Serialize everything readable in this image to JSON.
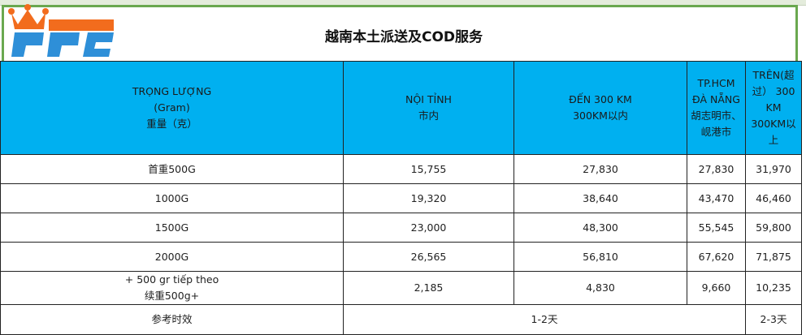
{
  "title": "越南本土派送及COD服务",
  "logo": {
    "text": "PFC",
    "crown_color": "#f26c1d",
    "letters_color": "#2e8fd8",
    "orange_bar": "#f26c1d"
  },
  "colors": {
    "header_bg": "#00b0f0",
    "title_border": "#6aa84f"
  },
  "header": {
    "weight": [
      "TRỌNG LƯỢNG",
      "(Gram)",
      "重量（克）"
    ],
    "local": [
      "NỘI TỈNH",
      "市内"
    ],
    "to300": [
      "ĐẾN 300 KM",
      "300KM以内"
    ],
    "hcm": [
      "TP.HCM",
      "ĐÀ NẴNG",
      "胡志明市、",
      "岘港市"
    ],
    "over300": [
      "TRÊN(超",
      "过） 300",
      "KM",
      "300KM以",
      "上"
    ]
  },
  "rows": [
    {
      "weight": "首重500G",
      "local": "15,755",
      "to300": "27,830",
      "hcm": "27,830",
      "over300": "31,970"
    },
    {
      "weight": "1000G",
      "local": "19,320",
      "to300": "38,640",
      "hcm": "43,470",
      "over300": "46,460"
    },
    {
      "weight": "1500G",
      "local": "23,000",
      "to300": "48,300",
      "hcm": "55,545",
      "over300": "59,800"
    },
    {
      "weight": "2000G",
      "local": "26,565",
      "to300": "56,810",
      "hcm": "67,620",
      "over300": "71,875"
    }
  ],
  "extra": {
    "weight_line1": "+ 500 gr tiếp theo",
    "weight_line2": "续重500g+",
    "local": "2,185",
    "to300": "4,830",
    "hcm": "9,660",
    "over300": "10,235"
  },
  "timing": {
    "label": "参考时效",
    "near": "1-2天",
    "far": "2-3天"
  }
}
